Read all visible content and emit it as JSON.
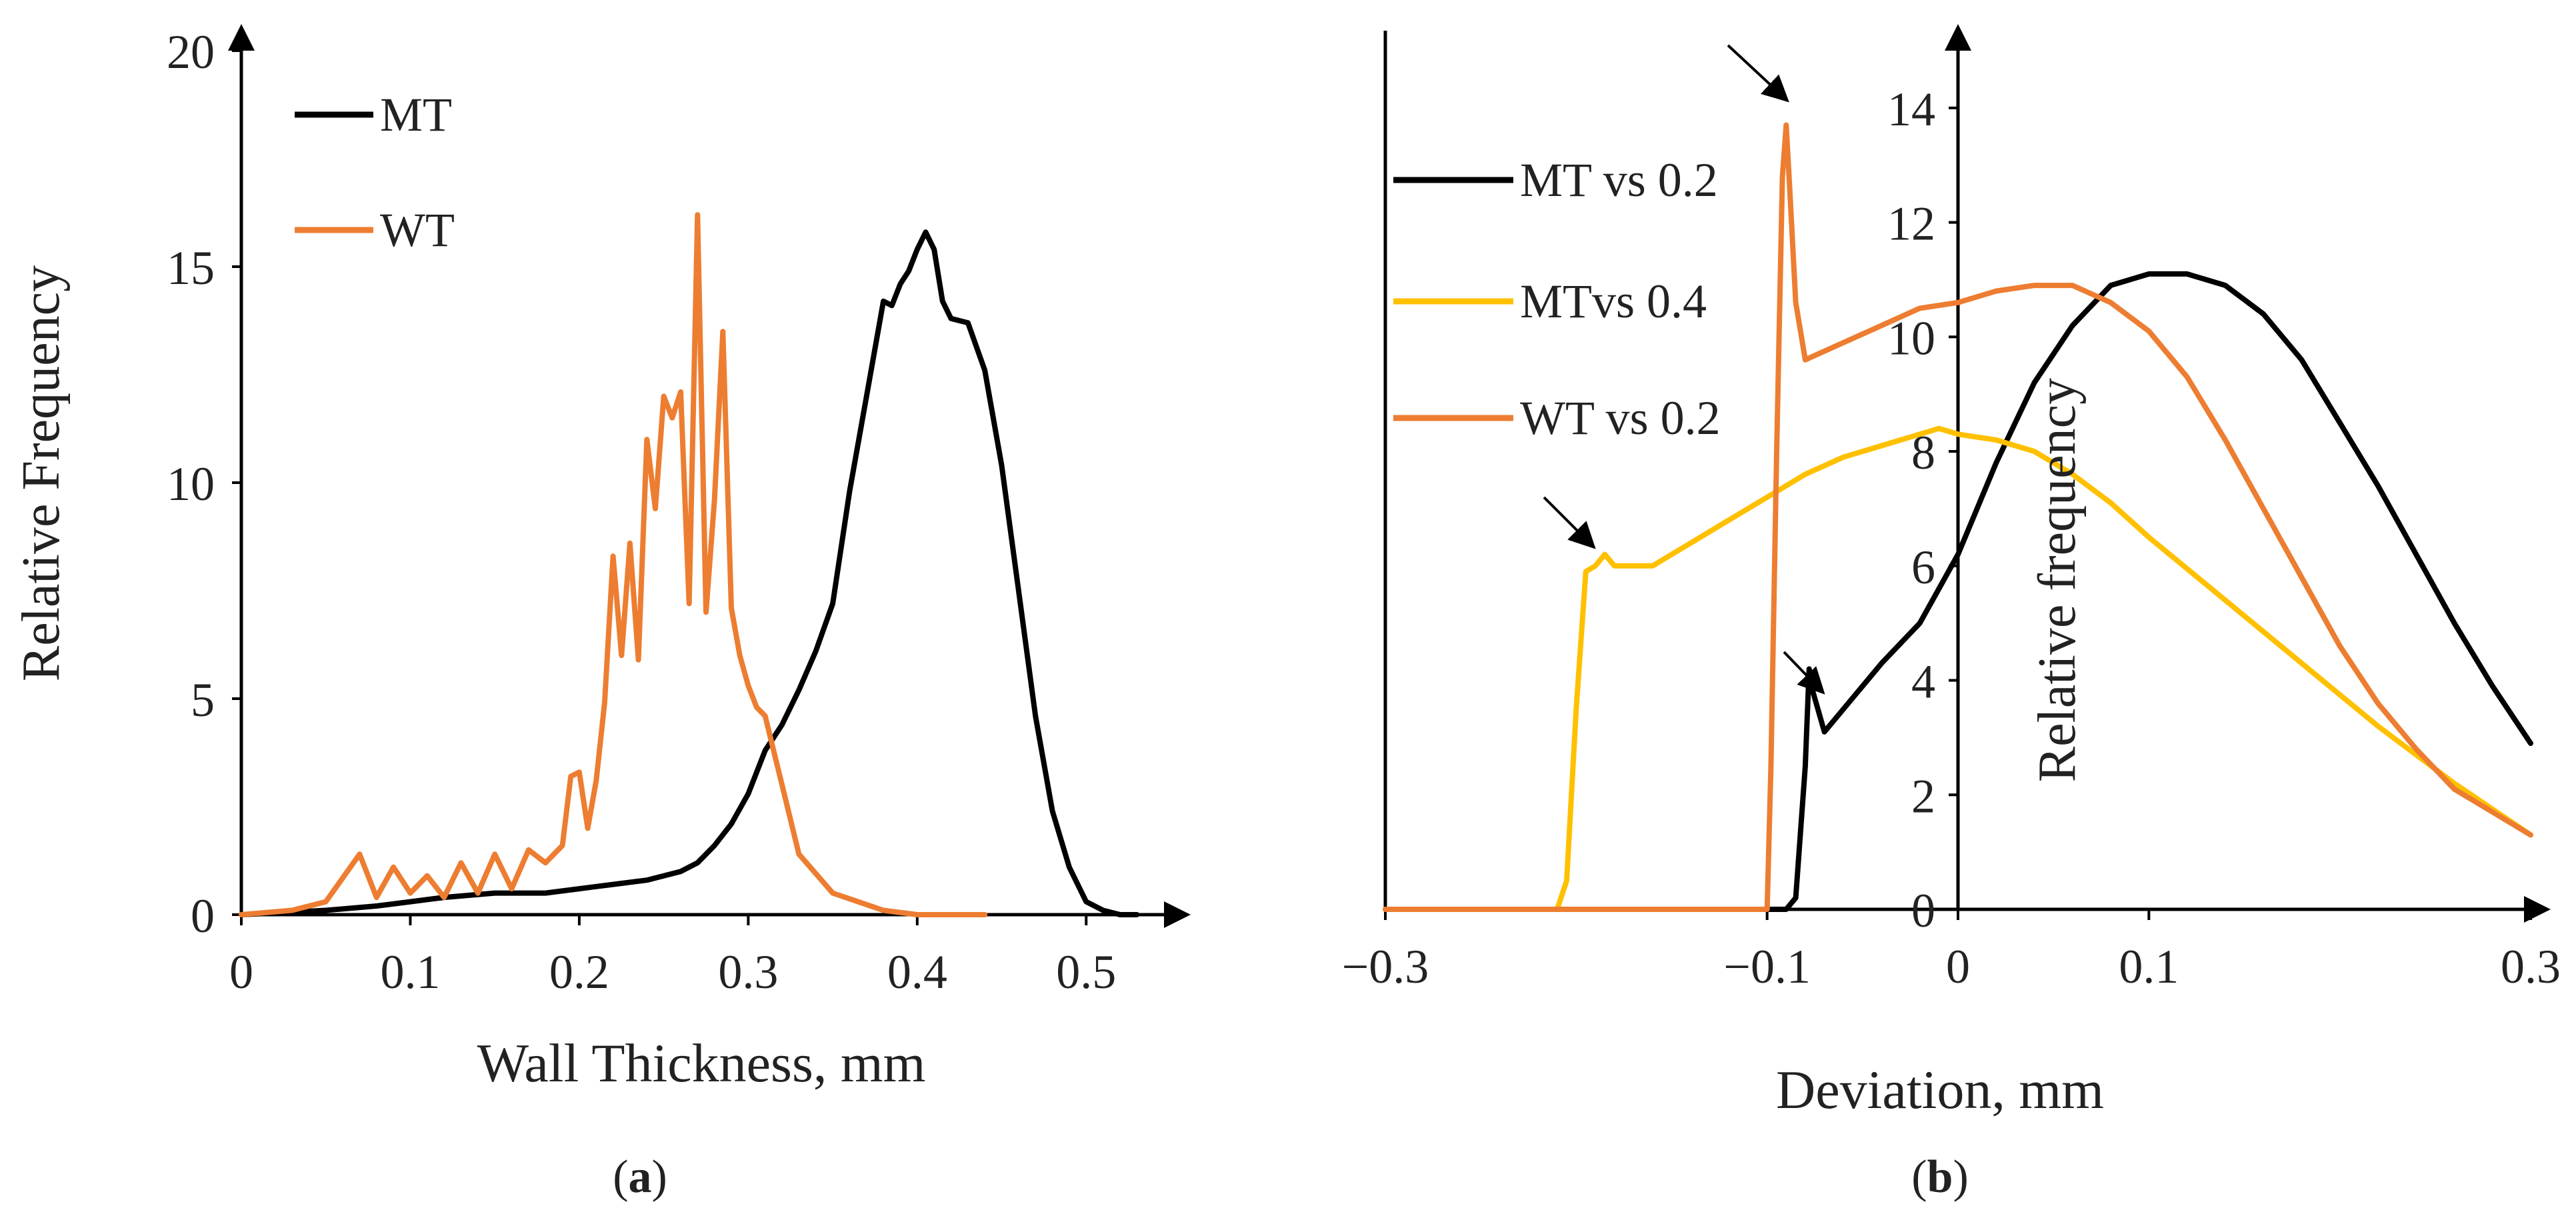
{
  "chart_data": [
    {
      "type": "line",
      "panel": "a",
      "caption_open": "(",
      "caption_letter": "a",
      "caption_close": ")",
      "xlabel": "Wall Thickness, mm",
      "ylabel": "Relative Frequency",
      "xlim": [
        0,
        0.55
      ],
      "ylim": [
        0,
        20
      ],
      "xticks": [
        "0",
        "0.1",
        "0.2",
        "0.3",
        "0.4",
        "0.5"
      ],
      "xtick_values": [
        0,
        0.1,
        0.2,
        0.3,
        0.4,
        0.5
      ],
      "yticks": [
        "0",
        "5",
        "10",
        "15",
        "20"
      ],
      "ytick_values": [
        0,
        5,
        10,
        15,
        20
      ],
      "legend_position": "top-left",
      "series": [
        {
          "name": "MT",
          "color": "#000000",
          "x": [
            0,
            0.05,
            0.08,
            0.1,
            0.12,
            0.15,
            0.18,
            0.2,
            0.22,
            0.24,
            0.26,
            0.27,
            0.28,
            0.29,
            0.3,
            0.31,
            0.32,
            0.33,
            0.34,
            0.35,
            0.36,
            0.37,
            0.38,
            0.385,
            0.39,
            0.395,
            0.4,
            0.405,
            0.41,
            0.415,
            0.42,
            0.43,
            0.44,
            0.45,
            0.46,
            0.47,
            0.48,
            0.49,
            0.5,
            0.51,
            0.52,
            0.53
          ],
          "y": [
            0,
            0.1,
            0.2,
            0.3,
            0.4,
            0.5,
            0.5,
            0.6,
            0.7,
            0.8,
            1.0,
            1.2,
            1.6,
            2.1,
            2.8,
            3.8,
            4.4,
            5.2,
            6.1,
            7.2,
            9.8,
            12.0,
            14.2,
            14.1,
            14.6,
            14.9,
            15.4,
            15.8,
            15.4,
            14.2,
            13.8,
            13.7,
            12.6,
            10.4,
            7.5,
            4.6,
            2.4,
            1.1,
            0.3,
            0.1,
            0,
            0
          ]
        },
        {
          "name": "WT",
          "color": "#ED7D31",
          "x": [
            0,
            0.03,
            0.05,
            0.07,
            0.08,
            0.09,
            0.1,
            0.11,
            0.12,
            0.13,
            0.14,
            0.15,
            0.16,
            0.17,
            0.18,
            0.19,
            0.195,
            0.2,
            0.205,
            0.21,
            0.215,
            0.22,
            0.225,
            0.23,
            0.235,
            0.24,
            0.245,
            0.25,
            0.255,
            0.26,
            0.265,
            0.27,
            0.275,
            0.28,
            0.285,
            0.29,
            0.295,
            0.3,
            0.305,
            0.31,
            0.32,
            0.33,
            0.35,
            0.38,
            0.4,
            0.44
          ],
          "y": [
            0,
            0.1,
            0.3,
            1.4,
            0.4,
            1.1,
            0.5,
            0.9,
            0.4,
            1.2,
            0.5,
            1.4,
            0.6,
            1.5,
            1.2,
            1.6,
            3.2,
            3.3,
            2.0,
            3.1,
            4.9,
            8.3,
            6.0,
            8.6,
            5.9,
            11.0,
            9.4,
            12.0,
            11.5,
            12.1,
            7.2,
            16.2,
            7.0,
            9.6,
            13.5,
            7.1,
            6.0,
            5.3,
            4.8,
            4.6,
            3.0,
            1.4,
            0.5,
            0.1,
            0,
            0
          ]
        }
      ]
    },
    {
      "type": "line",
      "panel": "b",
      "caption_open": "(",
      "caption_letter": "b",
      "caption_close": ")",
      "xlabel": "Deviation, mm",
      "ylabel": "Relative frequency",
      "xlim": [
        -0.3,
        0.3
      ],
      "ylim": [
        0,
        15
      ],
      "xticks": [
        "−0.3",
        "−0.1",
        "0",
        "0.1",
        "0.3"
      ],
      "xtick_values": [
        -0.3,
        -0.1,
        0,
        0.1,
        0.3
      ],
      "yticks": [
        "0",
        "2",
        "4",
        "6",
        "8",
        "10",
        "12",
        "14"
      ],
      "ytick_values": [
        0,
        2,
        4,
        6,
        8,
        10,
        12,
        14
      ],
      "legend_position": "top-left",
      "annotations": "arrows marking edge peaks",
      "series": [
        {
          "name": "MT vs 0.2",
          "color": "#000000",
          "x": [
            -0.3,
            -0.09,
            -0.085,
            -0.08,
            -0.078,
            -0.076,
            -0.07,
            -0.06,
            -0.04,
            -0.02,
            0,
            0.02,
            0.04,
            0.06,
            0.08,
            0.1,
            0.12,
            0.14,
            0.16,
            0.18,
            0.2,
            0.22,
            0.24,
            0.26,
            0.28,
            0.3
          ],
          "y": [
            0,
            0,
            0.2,
            2.5,
            4.2,
            3.8,
            3.1,
            3.5,
            4.3,
            5.0,
            6.2,
            7.8,
            9.2,
            10.2,
            10.9,
            11.1,
            11.1,
            10.9,
            10.4,
            9.6,
            8.5,
            7.4,
            6.2,
            5.0,
            3.9,
            2.9
          ]
        },
        {
          "name": "MTvs 0.4",
          "color": "#FFC000",
          "x": [
            -0.3,
            -0.21,
            -0.205,
            -0.2,
            -0.195,
            -0.19,
            -0.185,
            -0.18,
            -0.16,
            -0.14,
            -0.12,
            -0.1,
            -0.08,
            -0.06,
            -0.04,
            -0.02,
            -0.01,
            0,
            0.02,
            0.04,
            0.06,
            0.08,
            0.1,
            0.14,
            0.18,
            0.22,
            0.26,
            0.3
          ],
          "y": [
            0,
            0,
            0.5,
            3.5,
            5.9,
            6.0,
            6.2,
            6.0,
            6.0,
            6.4,
            6.8,
            7.2,
            7.6,
            7.9,
            8.1,
            8.3,
            8.4,
            8.3,
            8.2,
            8.0,
            7.6,
            7.1,
            6.5,
            5.4,
            4.3,
            3.2,
            2.2,
            1.3
          ]
        },
        {
          "name": "WT vs 0.2",
          "color": "#ED7D31",
          "x": [
            -0.3,
            -0.1,
            -0.098,
            -0.095,
            -0.092,
            -0.09,
            -0.088,
            -0.085,
            -0.08,
            -0.06,
            -0.04,
            -0.02,
            0,
            0.02,
            0.04,
            0.06,
            0.08,
            0.1,
            0.12,
            0.14,
            0.16,
            0.18,
            0.2,
            0.22,
            0.24,
            0.26,
            0.28,
            0.3
          ],
          "y": [
            0,
            0,
            2.5,
            8.0,
            12.8,
            13.7,
            12.5,
            10.6,
            9.6,
            9.9,
            10.2,
            10.5,
            10.6,
            10.8,
            10.9,
            10.9,
            10.6,
            10.1,
            9.3,
            8.2,
            7.0,
            5.8,
            4.6,
            3.6,
            2.8,
            2.1,
            1.7,
            1.3
          ]
        }
      ]
    }
  ]
}
